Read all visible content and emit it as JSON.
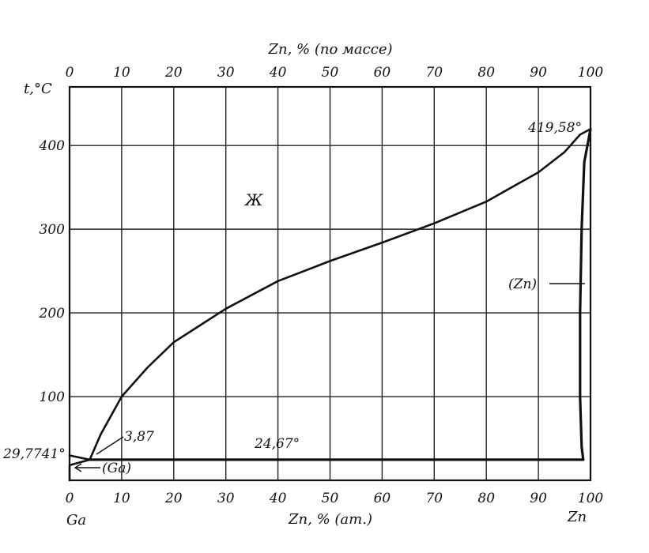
{
  "chart_data": {
    "type": "line",
    "ylabel": "t,°C",
    "top_axis_label": "Zn, % (по массе)",
    "bottom_axis_label": "Zn, % (ат.)",
    "left_element": "Ga",
    "right_element": "Zn",
    "x_ticks_bottom": [
      "0",
      "10",
      "20",
      "30",
      "40",
      "50",
      "60",
      "70",
      "80",
      "90",
      "100"
    ],
    "x_ticks_top": [
      "0",
      "10",
      "20",
      "30",
      "40",
      "50",
      "60",
      "70",
      "80",
      "90",
      "100"
    ],
    "y_ticks": [
      "100",
      "200",
      "300",
      "400"
    ],
    "xlim": [
      0,
      100
    ],
    "ylim": [
      0,
      470
    ],
    "grid": true,
    "series": [
      {
        "role": "liquidus",
        "x": [
          3.87,
          6,
          10,
          15,
          20,
          25,
          30,
          40,
          50,
          60,
          70,
          80,
          90,
          95,
          98,
          100
        ],
        "y": [
          24.67,
          55,
          100,
          135,
          165,
          185,
          205,
          238,
          262,
          284,
          307,
          333,
          368,
          392,
          413,
          419.58
        ]
      },
      {
        "role": "solidus-zn",
        "x": [
          100,
          98.8,
          98.3,
          98.0,
          98.0,
          98.3,
          98.6
        ],
        "y": [
          419.58,
          380,
          300,
          200,
          100,
          40,
          24.67
        ]
      },
      {
        "role": "eutectic",
        "x": [
          3.87,
          98.6
        ],
        "y": [
          24.67,
          24.67
        ]
      },
      {
        "role": "ga-side",
        "x": [
          0,
          3.87,
          0,
          0
        ],
        "y": [
          29.7741,
          24.67,
          18,
          0
        ]
      }
    ],
    "annotations": {
      "ga_melting": "29,7741°",
      "eutectic_point": "3,87",
      "eutectic_temp": "24,67°",
      "zn_melting": "419,58°",
      "liquid_region": "Ж",
      "zn_phase": "(Zn)",
      "ga_phase": "(Ga)"
    }
  }
}
